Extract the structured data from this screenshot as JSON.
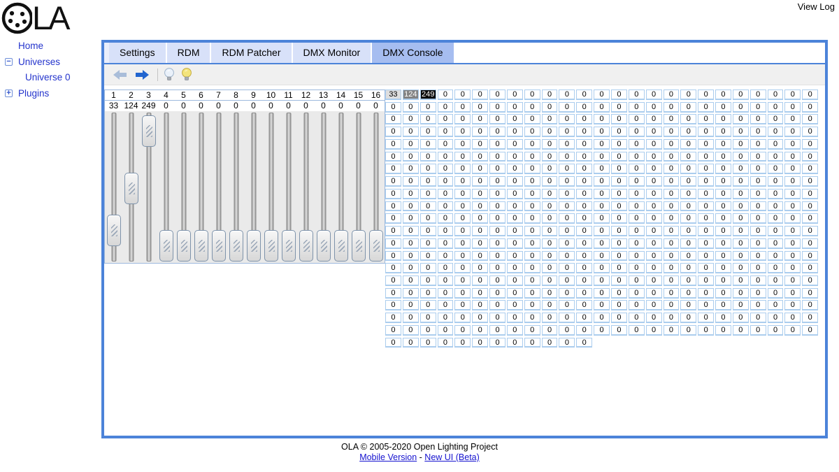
{
  "window": {
    "view_log_label": "View Log"
  },
  "logo": {
    "name": "OLA",
    "letters": "LA"
  },
  "sidebar": {
    "items": [
      {
        "label": "Home",
        "expander": null,
        "indent": false
      },
      {
        "label": "Universes",
        "expander": "−",
        "indent": false
      },
      {
        "label": "Universe 0",
        "expander": null,
        "indent": true
      },
      {
        "label": "Plugins",
        "expander": "+",
        "indent": false
      }
    ]
  },
  "tabs": {
    "items": [
      {
        "label": "Settings",
        "active": false
      },
      {
        "label": "RDM",
        "active": false
      },
      {
        "label": "RDM Patcher",
        "active": false
      },
      {
        "label": "DMX Monitor",
        "active": false
      },
      {
        "label": "DMX Console",
        "active": true
      }
    ]
  },
  "toolbar": {
    "icons": [
      "back-arrow-icon",
      "forward-arrow-icon",
      "bulb-off-icon",
      "bulb-on-icon"
    ]
  },
  "console": {
    "channel_count": 512,
    "grid_columns": 25,
    "slider_count": 16,
    "default_value": 0,
    "channel_values": {
      "1": 33,
      "2": 124,
      "3": 249
    }
  },
  "colors": {
    "panel_border": "#4c83d9",
    "tab_active_bg": "#a6bdf0",
    "tab_inactive_bg": "#d8e1f9",
    "grid_cell_border": "#abcdee",
    "link_blue": "#2333cc"
  },
  "footer": {
    "copyright": "OLA © 2005-2020 Open Lighting Project",
    "links": [
      {
        "label": "Mobile Version"
      },
      {
        "label": "New UI (Beta)"
      }
    ],
    "separator": " - "
  }
}
